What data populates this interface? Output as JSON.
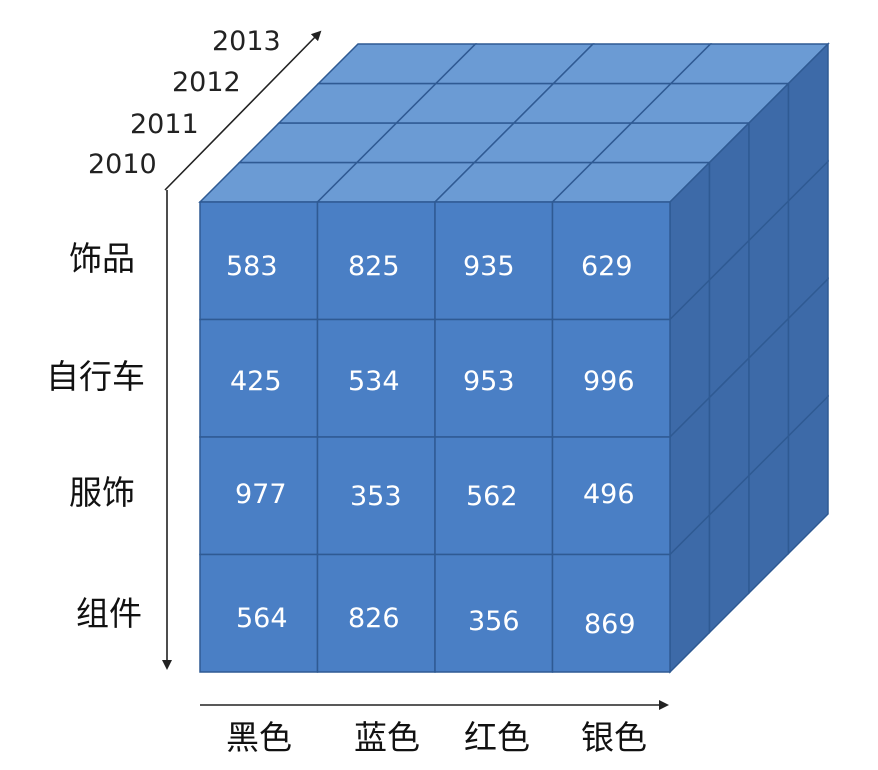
{
  "years": [
    "2013",
    "2012",
    "2011",
    "2010"
  ],
  "rows": [
    "饰品",
    "自行车",
    "服饰",
    "组件"
  ],
  "columns": [
    "黑色",
    "蓝色",
    "红色",
    "银色"
  ],
  "values": [
    [
      "583",
      "825",
      "935",
      "629"
    ],
    [
      "425",
      "534",
      "953",
      "996"
    ],
    [
      "977",
      "353",
      "562",
      "496"
    ],
    [
      "564",
      "826",
      "356",
      "869"
    ]
  ],
  "colors": {
    "front_face": "#4a7fc5",
    "top_face": "#6b9bd4",
    "side_face": "#3d6aa8",
    "grid_line": "#2f5a93"
  }
}
